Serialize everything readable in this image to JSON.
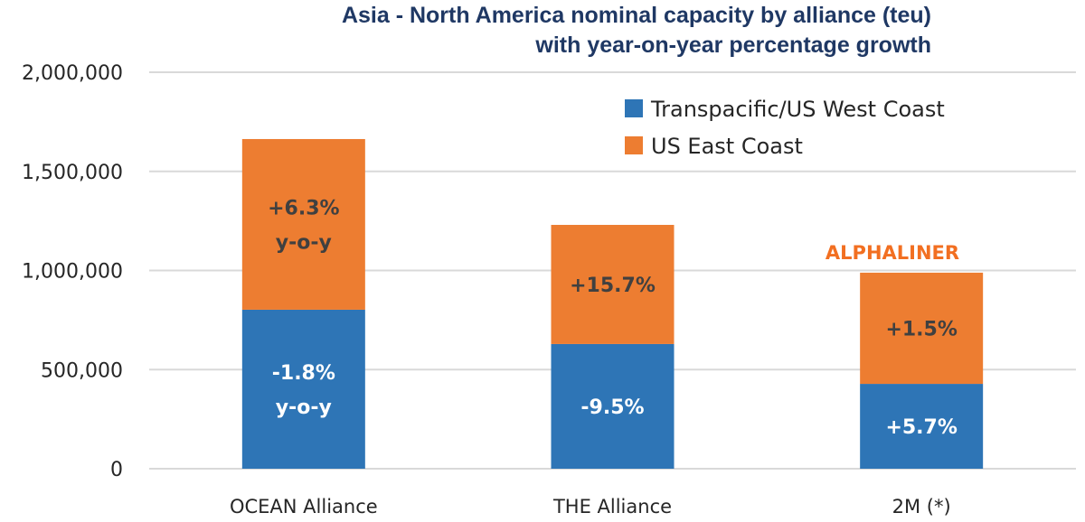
{
  "chart_data": {
    "type": "bar",
    "stacked": true,
    "title": "Asia - North America nominal capacity by alliance (teu)",
    "subtitle": "with year-on-year percentage growth",
    "xlabel": "",
    "ylabel": "",
    "ylim": [
      0,
      2000000
    ],
    "yticks": [
      0,
      500000,
      1000000,
      1500000,
      2000000
    ],
    "ytick_labels": [
      "0",
      "500,000",
      "1,000,000",
      "1,500,000",
      "2,000,000"
    ],
    "grid": true,
    "legend_position": "top-right",
    "categories": [
      "OCEAN Alliance",
      "THE Alliance",
      "2M (*)"
    ],
    "series": [
      {
        "name": "Transpacific/US West Coast",
        "color": "#2e75b6",
        "label_color": "#ffffff",
        "values": [
          802000,
          629000,
          428000
        ],
        "labels": [
          [
            "-1.8%",
            "y-o-y"
          ],
          [
            "-9.5%"
          ],
          [
            "+5.7%"
          ]
        ]
      },
      {
        "name": "US East Coast",
        "color": "#ed7d31",
        "label_color": "#404040",
        "values": [
          861000,
          601000,
          561000
        ],
        "labels": [
          [
            "+6.3%",
            "y-o-y"
          ],
          [
            "+15.7%"
          ],
          [
            "+1.5%"
          ]
        ]
      }
    ],
    "watermark": "ALPHALINER",
    "watermark_color": "#f26f21"
  }
}
